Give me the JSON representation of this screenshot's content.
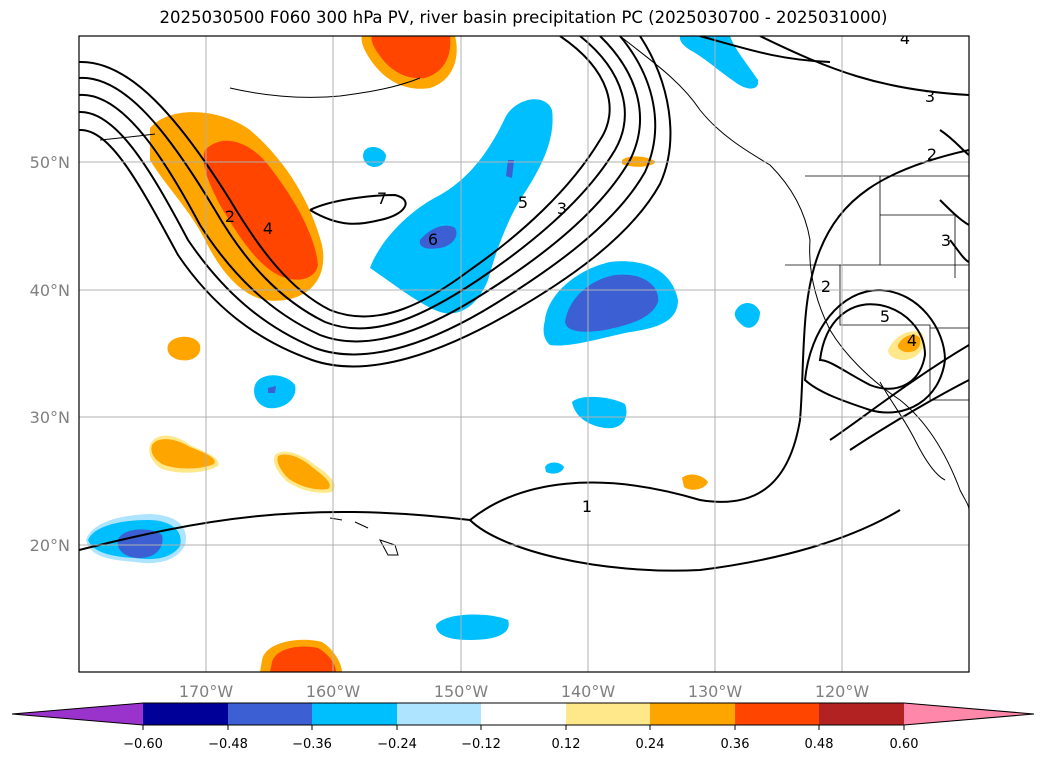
{
  "title": "2025030500 F060 300 hPa PV, river basin precipitation PC (2025030700 - 2025031000)",
  "lat_ticks": [
    "50°N",
    "40°N",
    "30°N",
    "20°N"
  ],
  "lon_ticks": [
    "170°W",
    "160°W",
    "150°W",
    "140°W",
    "130°W",
    "120°W"
  ],
  "contour_labels": [
    "2",
    "4",
    "7",
    "6",
    "5",
    "3",
    "1",
    "2",
    "5",
    "4",
    "3",
    "2",
    "3",
    "4"
  ],
  "colorbar": {
    "ticks": [
      "−0.60",
      "−0.48",
      "−0.36",
      "−0.24",
      "−0.12",
      "0.12",
      "0.24",
      "0.36",
      "0.48",
      "0.60"
    ],
    "colors": [
      "#9933cc",
      "#000099",
      "#3c5fd4",
      "#00bfff",
      "#aee4ff",
      "#ffffff",
      "#ffe88a",
      "#ffa500",
      "#ff4500",
      "#b22222",
      "#ff88aa"
    ]
  }
}
